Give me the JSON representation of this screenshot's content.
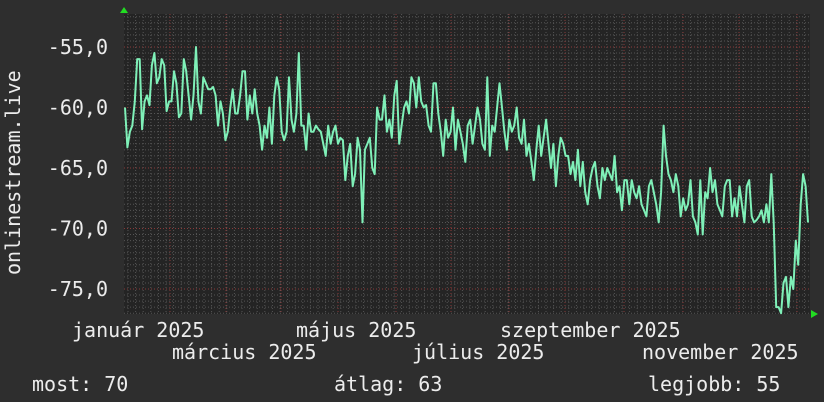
{
  "chart_data": {
    "type": "line",
    "ylabel": "onlinestream.live",
    "ylim": [
      -77,
      -52.3
    ],
    "yticks": [
      "-55,0",
      "-60,0",
      "-65,0",
      "-70,0",
      "-75,0"
    ],
    "ytick_values": [
      -55,
      -60,
      -65,
      -70,
      -75
    ],
    "xticks": [
      "január 2025",
      "március 2025",
      "május 2025",
      "július 2025",
      "szeptember 2025",
      "november 2025"
    ],
    "grid": true,
    "line_color": "#7ff0b8",
    "major_grid_color": "#8a3a3a",
    "minor_grid_color": "#555555",
    "background": "#2e2e2e",
    "plot_background": "#242424",
    "values": [
      -60,
      -63.3,
      -62,
      -61.5,
      -59.5,
      -56,
      -56,
      -61.8,
      -59.5,
      -59,
      -59.8,
      -56.5,
      -55.5,
      -58,
      -57.5,
      -56,
      -56.5,
      -60.3,
      -59.5,
      -59.5,
      -57,
      -58,
      -60.8,
      -60.5,
      -56,
      -57,
      -59,
      -61,
      -59,
      -55,
      -59.5,
      -60.5,
      -57.5,
      -58,
      -58.5,
      -58.5,
      -58.3,
      -59,
      -61.5,
      -59.5,
      -60.5,
      -62.7,
      -62,
      -60,
      -58.5,
      -60.5,
      -60.5,
      -59,
      -57,
      -57,
      -61,
      -59,
      -60.5,
      -58.5,
      -60.5,
      -61.5,
      -63.5,
      -61.5,
      -62.5,
      -60,
      -63,
      -59,
      -57.5,
      -58.5,
      -62,
      -62.7,
      -62,
      -57.5,
      -61,
      -62,
      -60.5,
      -55.5,
      -61.5,
      -61.5,
      -63.5,
      -60.5,
      -62,
      -62,
      -61.5,
      -61.8,
      -62,
      -63,
      -64,
      -61.5,
      -63,
      -62,
      -61.5,
      -63,
      -62.5,
      -62.7,
      -66,
      -64,
      -63,
      -66.5,
      -65.5,
      -62.5,
      -63.5,
      -69.5,
      -63.5,
      -63,
      -62.5,
      -65,
      -65.5,
      -60,
      -61,
      -61,
      -59,
      -62,
      -61,
      -62.5,
      -59,
      -57.8,
      -63,
      -61.5,
      -60,
      -59.5,
      -60.5,
      -57.5,
      -58,
      -60,
      -57.5,
      -59.5,
      -60,
      -59.8,
      -61.5,
      -62,
      -58,
      -58,
      -60.5,
      -62,
      -64,
      -61,
      -62.5,
      -62,
      -60,
      -63.5,
      -61,
      -62,
      -63,
      -64.5,
      -61.5,
      -61,
      -63,
      -61.5,
      -60,
      -61,
      -63,
      -63.5,
      -57.5,
      -64,
      -61.5,
      -62,
      -60,
      -58,
      -60,
      -62,
      -63.5,
      -61,
      -62,
      -61.5,
      -60,
      -62.5,
      -63,
      -61,
      -64,
      -63,
      -64.5,
      -66,
      -63.5,
      -61.5,
      -64,
      -62.5,
      -61,
      -63,
      -65,
      -63,
      -66.5,
      -64,
      -62.5,
      -63,
      -64,
      -64,
      -65.5,
      -64.5,
      -66,
      -63.5,
      -66.5,
      -64.5,
      -67,
      -68,
      -66,
      -65,
      -64.5,
      -66.5,
      -67.5,
      -65,
      -66,
      -65,
      -65.5,
      -66,
      -64,
      -67,
      -66.5,
      -68.5,
      -66,
      -66,
      -68,
      -66,
      -67,
      -67.5,
      -66.5,
      -68,
      -68.5,
      -69,
      -66.5,
      -66,
      -67,
      -68,
      -69.5,
      -67,
      -61.5,
      -64,
      -65.5,
      -66,
      -67,
      -65.5,
      -66.5,
      -69,
      -67.5,
      -68.5,
      -68,
      -66,
      -69,
      -69.5,
      -70.5,
      -66,
      -70.5,
      -67,
      -67.5,
      -65,
      -67,
      -66,
      -68,
      -68.5,
      -69,
      -66.5,
      -66,
      -66,
      -69,
      -67.5,
      -69,
      -66.5,
      -68,
      -69.5,
      -66.5,
      -66,
      -69,
      -69.5,
      -69.3,
      -69,
      -68.5,
      -69.5,
      -68,
      -69.5,
      -65.5,
      -69.5,
      -76.5,
      -76.5,
      -77,
      -74.5,
      -74,
      -76.5,
      -74,
      -75,
      -71,
      -73,
      -68,
      -65.5,
      -66.5,
      -69.5
    ]
  },
  "legend": {
    "current": "most: 70",
    "average": "átlag: 63",
    "best": "legjobb: 55"
  }
}
